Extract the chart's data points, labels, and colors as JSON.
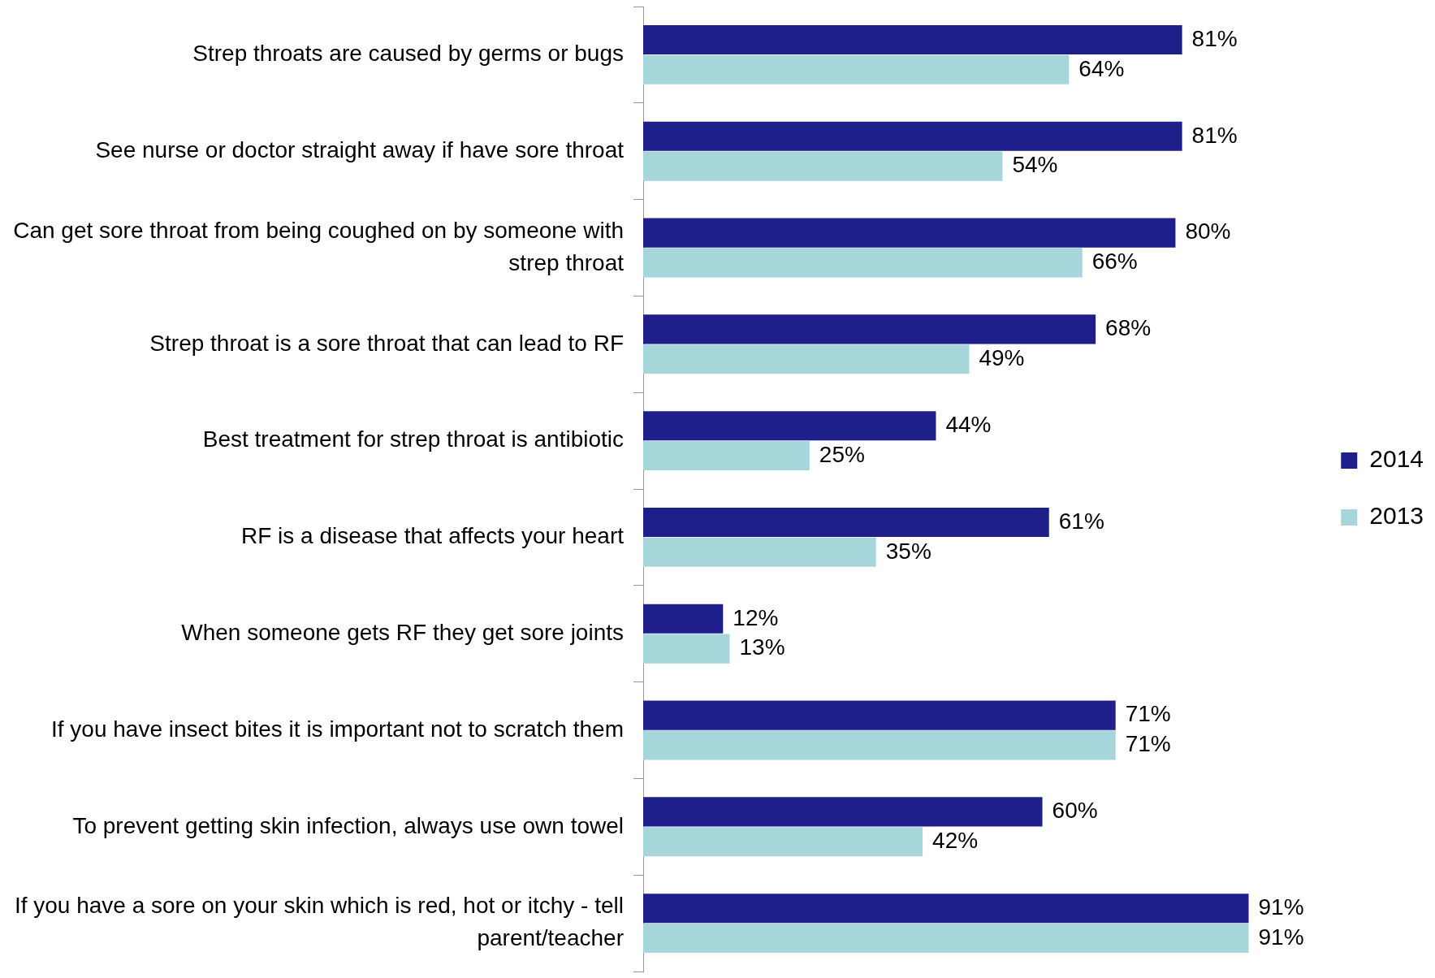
{
  "chart_data": {
    "type": "bar",
    "orientation": "horizontal",
    "legend": "right",
    "categories": [
      "Strep throats are caused by germs or bugs",
      "See nurse or doctor straight away if have sore throat",
      "Can get sore throat from being coughed on by someone with strep throat",
      "Strep throat is a sore throat that can lead to RF",
      "Best treatment for strep throat is antibiotic",
      "RF is a disease that affects your heart",
      "When someone gets RF they get sore joints",
      "If you have insect bites it is important not to scratch them",
      "To prevent getting skin infection, always use own towel",
      "If you have a sore on your skin which is red, hot or itchy - tell parent/teacher"
    ],
    "series": [
      {
        "name": "2014",
        "color": "#1f1f8c",
        "values": [
          81,
          81,
          80,
          68,
          44,
          61,
          12,
          71,
          60,
          91
        ],
        "value_labels": [
          "81%",
          "81%",
          "80%",
          "68%",
          "44%",
          "61%",
          "12%",
          "71%",
          "60%",
          "91%"
        ]
      },
      {
        "name": "2013",
        "color": "#a6d6da",
        "values": [
          64,
          54,
          66,
          49,
          25,
          35,
          13,
          71,
          42,
          91
        ],
        "value_labels": [
          "64%",
          "54%",
          "66%",
          "49%",
          "25%",
          "35%",
          "13%",
          "71%",
          "42%",
          "91%"
        ]
      }
    ]
  }
}
